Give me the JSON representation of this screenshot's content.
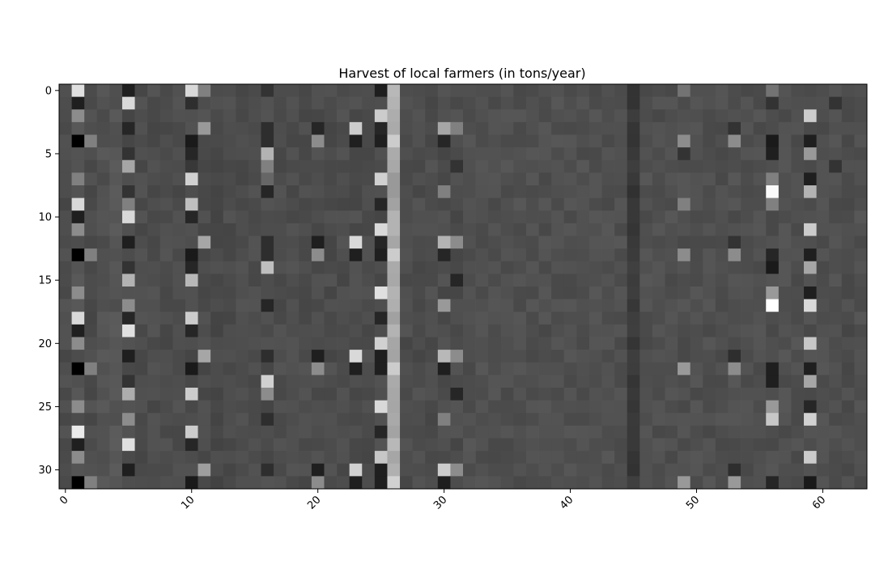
{
  "chart_data": {
    "type": "heatmap",
    "title": "Harvest of local farmers (in tons/year)",
    "xlabel": "",
    "ylabel": "",
    "colormap": "gray",
    "rows": 32,
    "cols": 64,
    "x_ticks": [
      0,
      10,
      20,
      30,
      40,
      50,
      60
    ],
    "x_tick_labels": [
      "0",
      "10",
      "20",
      "30",
      "40",
      "50",
      "60"
    ],
    "y_ticks": [
      0,
      5,
      10,
      15,
      20,
      25,
      30
    ],
    "y_tick_labels": [
      "0",
      "5",
      "10",
      "15",
      "20",
      "25",
      "30"
    ],
    "xlim": [
      -0.5,
      63.5
    ],
    "ylim": [
      31.5,
      -0.5
    ],
    "x_tick_rotation": 45,
    "base_level": 0.31,
    "column_base_levels": [
      0.3,
      0.32,
      0.3,
      0.32,
      0.33,
      0.3,
      0.3,
      0.3,
      0.3,
      0.3,
      0.3,
      0.3,
      0.29,
      0.3,
      0.3,
      0.3,
      0.3,
      0.3,
      0.3,
      0.3,
      0.3,
      0.3,
      0.3,
      0.3,
      0.3,
      0.3,
      0.66,
      0.3,
      0.3,
      0.3,
      0.3,
      0.3,
      0.31,
      0.31,
      0.31,
      0.31,
      0.31,
      0.31,
      0.31,
      0.31,
      0.31,
      0.31,
      0.31,
      0.31,
      0.31,
      0.22,
      0.31,
      0.31,
      0.31,
      0.31,
      0.31,
      0.31,
      0.31,
      0.31,
      0.31,
      0.31,
      0.31,
      0.31,
      0.31,
      0.31,
      0.31,
      0.31,
      0.3,
      0.31
    ],
    "cell_overrides": [
      [
        0,
        1,
        0.88
      ],
      [
        0,
        5,
        0.12
      ],
      [
        0,
        10,
        0.85
      ],
      [
        0,
        11,
        0.5
      ],
      [
        0,
        16,
        0.2
      ],
      [
        0,
        25,
        0.12
      ],
      [
        0,
        26,
        0.72
      ],
      [
        0,
        45,
        0.2
      ],
      [
        0,
        49,
        0.45
      ],
      [
        0,
        56,
        0.45
      ],
      [
        1,
        1,
        0.12
      ],
      [
        1,
        5,
        0.85
      ],
      [
        1,
        10,
        0.18
      ],
      [
        1,
        26,
        0.7
      ],
      [
        1,
        56,
        0.2
      ],
      [
        1,
        61,
        0.2
      ],
      [
        2,
        1,
        0.55
      ],
      [
        2,
        25,
        0.8
      ],
      [
        2,
        26,
        0.68
      ],
      [
        2,
        59,
        0.8
      ],
      [
        3,
        5,
        0.15
      ],
      [
        3,
        11,
        0.6
      ],
      [
        3,
        16,
        0.18
      ],
      [
        3,
        20,
        0.15
      ],
      [
        3,
        23,
        0.8
      ],
      [
        3,
        25,
        0.15
      ],
      [
        3,
        30,
        0.65
      ],
      [
        3,
        31,
        0.5
      ],
      [
        3,
        53,
        0.2
      ],
      [
        4,
        1,
        0.0
      ],
      [
        4,
        2,
        0.5
      ],
      [
        4,
        10,
        0.1
      ],
      [
        4,
        16,
        0.18
      ],
      [
        4,
        20,
        0.55
      ],
      [
        4,
        23,
        0.12
      ],
      [
        4,
        25,
        0.12
      ],
      [
        4,
        26,
        0.8
      ],
      [
        4,
        30,
        0.15
      ],
      [
        4,
        49,
        0.55
      ],
      [
        4,
        53,
        0.55
      ],
      [
        4,
        56,
        0.1
      ],
      [
        4,
        59,
        0.12
      ],
      [
        5,
        5,
        0.2
      ],
      [
        5,
        10,
        0.15
      ],
      [
        5,
        16,
        0.7
      ],
      [
        5,
        49,
        0.2
      ],
      [
        5,
        56,
        0.12
      ],
      [
        5,
        59,
        0.6
      ],
      [
        6,
        5,
        0.65
      ],
      [
        6,
        10,
        0.22
      ],
      [
        6,
        16,
        0.5
      ],
      [
        6,
        31,
        0.2
      ],
      [
        6,
        61,
        0.2
      ],
      [
        7,
        1,
        0.5
      ],
      [
        7,
        10,
        0.82
      ],
      [
        7,
        16,
        0.4
      ],
      [
        7,
        25,
        0.82
      ],
      [
        7,
        26,
        0.6
      ],
      [
        7,
        56,
        0.5
      ],
      [
        7,
        59,
        0.12
      ],
      [
        8,
        5,
        0.2
      ],
      [
        8,
        16,
        0.15
      ],
      [
        8,
        26,
        0.6
      ],
      [
        8,
        30,
        0.5
      ],
      [
        8,
        56,
        0.98
      ],
      [
        8,
        59,
        0.7
      ],
      [
        9,
        1,
        0.85
      ],
      [
        9,
        5,
        0.5
      ],
      [
        9,
        10,
        0.75
      ],
      [
        9,
        25,
        0.15
      ],
      [
        9,
        45,
        0.22
      ],
      [
        9,
        49,
        0.5
      ],
      [
        9,
        56,
        0.5
      ],
      [
        10,
        1,
        0.12
      ],
      [
        10,
        5,
        0.85
      ],
      [
        10,
        10,
        0.15
      ],
      [
        10,
        26,
        0.7
      ],
      [
        11,
        1,
        0.55
      ],
      [
        11,
        25,
        0.85
      ],
      [
        11,
        26,
        0.7
      ],
      [
        11,
        59,
        0.8
      ],
      [
        12,
        5,
        0.12
      ],
      [
        12,
        11,
        0.65
      ],
      [
        12,
        16,
        0.18
      ],
      [
        12,
        20,
        0.12
      ],
      [
        12,
        23,
        0.85
      ],
      [
        12,
        25,
        0.15
      ],
      [
        12,
        30,
        0.7
      ],
      [
        12,
        31,
        0.55
      ],
      [
        12,
        53,
        0.2
      ],
      [
        13,
        1,
        0.0
      ],
      [
        13,
        2,
        0.5
      ],
      [
        13,
        10,
        0.1
      ],
      [
        13,
        16,
        0.18
      ],
      [
        13,
        20,
        0.55
      ],
      [
        13,
        23,
        0.12
      ],
      [
        13,
        25,
        0.12
      ],
      [
        13,
        26,
        0.8
      ],
      [
        13,
        30,
        0.15
      ],
      [
        13,
        49,
        0.55
      ],
      [
        13,
        53,
        0.55
      ],
      [
        13,
        56,
        0.15
      ],
      [
        13,
        59,
        0.12
      ],
      [
        14,
        5,
        0.2
      ],
      [
        14,
        10,
        0.15
      ],
      [
        14,
        16,
        0.75
      ],
      [
        14,
        56,
        0.1
      ],
      [
        14,
        59,
        0.65
      ],
      [
        15,
        5,
        0.7
      ],
      [
        15,
        10,
        0.72
      ],
      [
        15,
        31,
        0.15
      ],
      [
        16,
        1,
        0.55
      ],
      [
        16,
        25,
        0.88
      ],
      [
        16,
        26,
        0.7
      ],
      [
        16,
        56,
        0.6
      ],
      [
        16,
        59,
        0.12
      ],
      [
        17,
        5,
        0.55
      ],
      [
        17,
        16,
        0.15
      ],
      [
        17,
        30,
        0.6
      ],
      [
        17,
        56,
        1.0
      ],
      [
        17,
        59,
        0.85
      ],
      [
        18,
        1,
        0.85
      ],
      [
        18,
        5,
        0.15
      ],
      [
        18,
        10,
        0.8
      ],
      [
        18,
        25,
        0.15
      ],
      [
        19,
        1,
        0.12
      ],
      [
        19,
        5,
        0.88
      ],
      [
        19,
        10,
        0.15
      ],
      [
        19,
        26,
        0.7
      ],
      [
        20,
        1,
        0.55
      ],
      [
        20,
        25,
        0.82
      ],
      [
        20,
        26,
        0.65
      ],
      [
        20,
        59,
        0.78
      ],
      [
        21,
        5,
        0.12
      ],
      [
        21,
        11,
        0.65
      ],
      [
        21,
        16,
        0.18
      ],
      [
        21,
        20,
        0.12
      ],
      [
        21,
        23,
        0.85
      ],
      [
        21,
        25,
        0.12
      ],
      [
        21,
        30,
        0.72
      ],
      [
        21,
        31,
        0.55
      ],
      [
        21,
        53,
        0.18
      ],
      [
        22,
        1,
        0.0
      ],
      [
        22,
        2,
        0.5
      ],
      [
        22,
        10,
        0.1
      ],
      [
        22,
        20,
        0.55
      ],
      [
        22,
        23,
        0.12
      ],
      [
        22,
        25,
        0.12
      ],
      [
        22,
        26,
        0.8
      ],
      [
        22,
        30,
        0.12
      ],
      [
        22,
        49,
        0.6
      ],
      [
        22,
        53,
        0.55
      ],
      [
        22,
        56,
        0.12
      ],
      [
        22,
        59,
        0.12
      ],
      [
        23,
        5,
        0.2
      ],
      [
        23,
        16,
        0.82
      ],
      [
        23,
        56,
        0.12
      ],
      [
        23,
        59,
        0.65
      ],
      [
        24,
        5,
        0.68
      ],
      [
        24,
        10,
        0.8
      ],
      [
        24,
        16,
        0.55
      ],
      [
        24,
        31,
        0.15
      ],
      [
        25,
        1,
        0.55
      ],
      [
        25,
        25,
        0.85
      ],
      [
        25,
        26,
        0.65
      ],
      [
        25,
        56,
        0.6
      ],
      [
        25,
        59,
        0.15
      ],
      [
        26,
        5,
        0.55
      ],
      [
        26,
        16,
        0.18
      ],
      [
        26,
        30,
        0.5
      ],
      [
        26,
        56,
        0.78
      ],
      [
        26,
        59,
        0.82
      ],
      [
        27,
        1,
        0.92
      ],
      [
        27,
        10,
        0.8
      ],
      [
        27,
        25,
        0.15
      ],
      [
        28,
        1,
        0.12
      ],
      [
        28,
        5,
        0.88
      ],
      [
        28,
        10,
        0.15
      ],
      [
        28,
        26,
        0.72
      ],
      [
        29,
        1,
        0.55
      ],
      [
        29,
        25,
        0.78
      ],
      [
        29,
        26,
        0.65
      ],
      [
        29,
        59,
        0.8
      ],
      [
        30,
        5,
        0.12
      ],
      [
        30,
        11,
        0.62
      ],
      [
        30,
        16,
        0.18
      ],
      [
        30,
        20,
        0.12
      ],
      [
        30,
        23,
        0.82
      ],
      [
        30,
        25,
        0.12
      ],
      [
        30,
        30,
        0.8
      ],
      [
        30,
        31,
        0.55
      ],
      [
        30,
        53,
        0.18
      ],
      [
        31,
        1,
        0.0
      ],
      [
        31,
        2,
        0.5
      ],
      [
        31,
        10,
        0.1
      ],
      [
        31,
        20,
        0.55
      ],
      [
        31,
        23,
        0.12
      ],
      [
        31,
        25,
        0.12
      ],
      [
        31,
        26,
        0.82
      ],
      [
        31,
        30,
        0.12
      ],
      [
        31,
        49,
        0.6
      ],
      [
        31,
        53,
        0.6
      ],
      [
        31,
        56,
        0.15
      ],
      [
        31,
        59,
        0.1
      ]
    ]
  }
}
